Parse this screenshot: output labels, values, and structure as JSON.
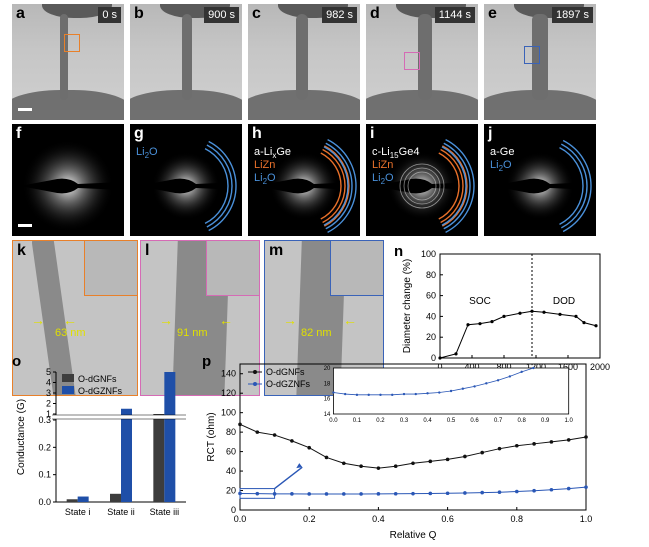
{
  "figure": {
    "tem_panels": [
      {
        "label": "a",
        "time": "0 s"
      },
      {
        "label": "b",
        "time": "900 s"
      },
      {
        "label": "c",
        "time": "982 s"
      },
      {
        "label": "d",
        "time": "1144 s"
      },
      {
        "label": "e",
        "time": "1897 s"
      }
    ],
    "saed_panels": [
      {
        "label": "f",
        "phases": []
      },
      {
        "label": "g",
        "phases": [
          {
            "text": "Li2O",
            "color": "#4a90d9"
          }
        ]
      },
      {
        "label": "h",
        "phases": [
          {
            "text": "a-LixGe",
            "color": "#ffffff"
          },
          {
            "text": "LiZn",
            "color": "#e8702a"
          },
          {
            "text": "Li2O",
            "color": "#4a90d9"
          }
        ]
      },
      {
        "label": "i",
        "phases": [
          {
            "text": "c-Li15Ge4",
            "color": "#ffffff"
          },
          {
            "text": "LiZn",
            "color": "#e8702a"
          },
          {
            "text": "Li2O",
            "color": "#4a90d9"
          }
        ]
      },
      {
        "label": "j",
        "phases": [
          {
            "text": "a-Ge",
            "color": "#ffffff"
          },
          {
            "text": "Li2O",
            "color": "#4a90d9"
          }
        ]
      }
    ],
    "hr_panels": [
      {
        "label": "k",
        "width": "63 nm",
        "border": "#e8802a"
      },
      {
        "label": "l",
        "width": "91 nm",
        "border": "#d56bb5"
      },
      {
        "label": "m",
        "width": "82 nm",
        "border": "#3a63b8"
      }
    ]
  },
  "chart_data": [
    {
      "id": "n",
      "type": "line",
      "xlabel": "Time (s)",
      "ylabel": "Diameter change (%)",
      "xlim": [
        0,
        2000
      ],
      "ylim": [
        0,
        100
      ],
      "xticks": [
        "0",
        "400",
        "800",
        "1200",
        "1600",
        "2000"
      ],
      "yticks": [
        "0",
        "20",
        "40",
        "60",
        "80",
        "100"
      ],
      "annotations": [
        "SOC",
        "DOD"
      ],
      "divider_x": 1150,
      "x": [
        0,
        200,
        350,
        500,
        650,
        800,
        1000,
        1150,
        1300,
        1500,
        1700,
        1800,
        1950
      ],
      "values": [
        0,
        4,
        32,
        33,
        35,
        40,
        43,
        45,
        44,
        42,
        40,
        34,
        31
      ]
    },
    {
      "id": "o",
      "type": "bar",
      "ylabel": "Conductance (G)",
      "yticks": [
        "0.0",
        "0.1",
        "0.2",
        "0.3",
        "1",
        "2",
        "3",
        "4",
        "5"
      ],
      "categories": [
        "State i",
        "State ii",
        "State iii"
      ],
      "series": [
        {
          "name": "O-dGNFs",
          "color": "#3d3d3d",
          "values": [
            0.01,
            0.03,
            1.0
          ]
        },
        {
          "name": "O-dGZNFs",
          "color": "#1f4fa8",
          "values": [
            0.02,
            1.5,
            5.0
          ]
        }
      ]
    },
    {
      "id": "p",
      "type": "line",
      "xlabel": "Relative Q",
      "ylabel": "RCT (ohm)",
      "xlim": [
        0,
        1
      ],
      "ylim": [
        0,
        150
      ],
      "xticks": [
        "0.0",
        "0.2",
        "0.4",
        "0.6",
        "0.8",
        "1.0"
      ],
      "yticks": [
        "0",
        "20",
        "40",
        "60",
        "80",
        "100",
        "120",
        "140"
      ],
      "series": [
        {
          "name": "O-dGNFs",
          "color": "#111111",
          "x": [
            0,
            0.05,
            0.1,
            0.15,
            0.2,
            0.25,
            0.3,
            0.35,
            0.4,
            0.45,
            0.5,
            0.55,
            0.6,
            0.65,
            0.7,
            0.75,
            0.8,
            0.85,
            0.9,
            0.95,
            1.0
          ],
          "values": [
            88,
            80,
            77,
            71,
            64,
            54,
            48,
            45,
            43,
            45,
            48,
            50,
            52,
            55,
            59,
            63,
            66,
            68,
            70,
            72,
            75
          ]
        },
        {
          "name": "O-dGZNFs",
          "color": "#2a57b6",
          "x": [
            0,
            0.05,
            0.1,
            0.15,
            0.2,
            0.25,
            0.3,
            0.35,
            0.4,
            0.45,
            0.5,
            0.55,
            0.6,
            0.65,
            0.7,
            0.75,
            0.8,
            0.85,
            0.9,
            0.95,
            1.0
          ],
          "values": [
            17,
            16.8,
            16.6,
            16.6,
            16.5,
            16.5,
            16.5,
            16.5,
            16.6,
            16.7,
            16.8,
            17,
            17.2,
            17.5,
            17.9,
            18.3,
            19,
            19.8,
            20.8,
            22,
            23.5
          ]
        }
      ],
      "inset": {
        "xlim": [
          0,
          1
        ],
        "ylim": [
          14,
          20
        ],
        "xticks": [
          "0.0",
          "0.1",
          "0.2",
          "0.3",
          "0.4",
          "0.5",
          "0.6",
          "0.7",
          "0.8",
          "0.9",
          "1.0"
        ],
        "yticks": [
          "14",
          "16",
          "18",
          "20"
        ],
        "x": [
          0,
          0.05,
          0.1,
          0.15,
          0.2,
          0.25,
          0.3,
          0.35,
          0.4,
          0.45,
          0.5,
          0.55,
          0.6,
          0.65,
          0.7,
          0.75,
          0.8,
          0.85
        ],
        "values": [
          16.8,
          16.6,
          16.5,
          16.5,
          16.5,
          16.5,
          16.6,
          16.6,
          16.7,
          16.8,
          17,
          17.3,
          17.6,
          18,
          18.4,
          18.9,
          19.5,
          20
        ]
      }
    }
  ]
}
